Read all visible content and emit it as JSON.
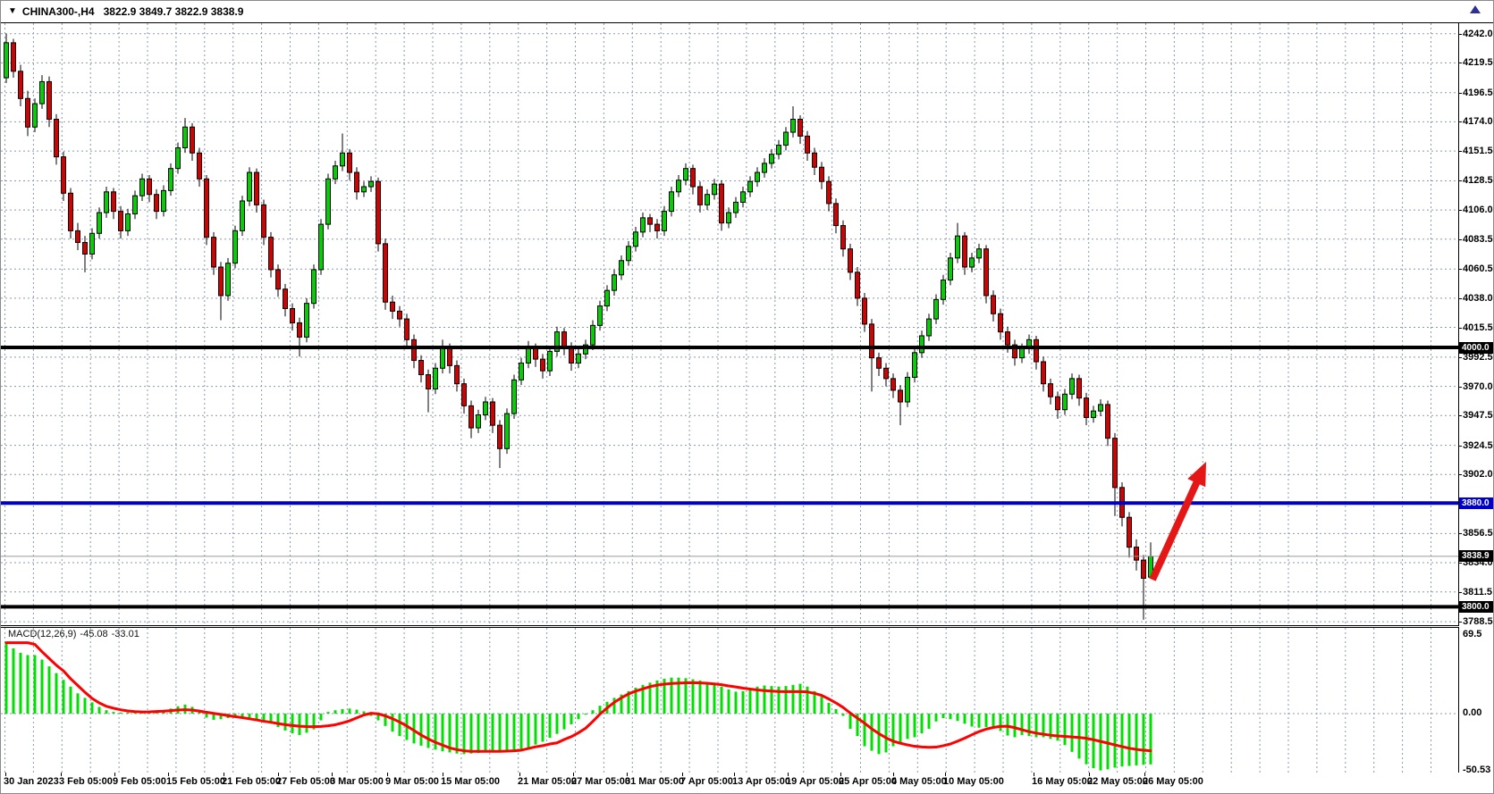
{
  "title_bar": {
    "symbol": "CHINA300-,H4",
    "ohlc": "3822.9 3849.7 3822.9 3838.9"
  },
  "icons": {
    "symbol_dropdown": "▼",
    "chart_shift": "triangle-up"
  },
  "price_axis": {
    "tick_labels": [
      "4242.0",
      "4219.5",
      "4196.5",
      "4174.0",
      "4151.5",
      "4128.5",
      "4106.0",
      "4083.5",
      "4060.5",
      "4038.0",
      "4015.5",
      "3992.5",
      "3970.0",
      "3947.5",
      "3924.5",
      "3902.0",
      "3856.5",
      "3834.0",
      "3811.5",
      "3788.5"
    ],
    "badges": [
      {
        "text": "4000.0",
        "price": 4000.0,
        "bg": "#000000"
      },
      {
        "text": "3880.0",
        "price": 3880.0,
        "bg": "#0000c8"
      },
      {
        "text": "3838.9",
        "price": 3838.9,
        "bg": "#000000"
      },
      {
        "text": "3800.0",
        "price": 3800.0,
        "bg": "#000000"
      }
    ]
  },
  "time_axis": {
    "labels": [
      "30 Jan 2023",
      "3 Feb 05:00",
      "9 Feb 05:00",
      "15 Feb 05:00",
      "21 Feb 05:00",
      "27 Feb 05:00",
      "3 Mar 05:00",
      "9 Mar 05:00",
      "15 Mar 05:00",
      "21 Mar 05:00",
      "27 Mar 05:00",
      "31 Mar 05:00",
      "7 Apr 05:00",
      "13 Apr 05:00",
      "19 Apr 05:00",
      "25 Apr 05:00",
      "4 May 05:00",
      "10 May 05:00",
      "16 May 05:00",
      "22 May 05:00",
      "26 May 05:00"
    ],
    "positions": [
      3,
      65,
      125,
      185,
      247,
      308,
      368,
      430,
      492,
      578,
      638,
      698,
      760,
      818,
      878,
      937,
      996,
      1054,
      1153,
      1215,
      1277
    ]
  },
  "macd": {
    "name": "MACD(12,26,9)",
    "histogram_value": "-45.08",
    "signal_value": "-33.01",
    "axis_labels": [
      "69.5",
      "0.00",
      "-50.53"
    ],
    "axis_values": [
      69.5,
      0,
      -50.53
    ]
  },
  "colors": {
    "bull": "#00d200",
    "bear": "#d60000",
    "outline": "#000000",
    "wick": "#000000",
    "grid": "#8a99ad",
    "histogram": "#00e000",
    "signal_line": "#ff0000",
    "hline_black": "#000000",
    "hline_blue": "#0000c8",
    "arrow_red": "#e41616",
    "current_price_line": "#999999"
  },
  "chart_data": {
    "type": "candlestick",
    "title": "CHINA300-,H4",
    "timeframe": "H4",
    "price_range": [
      3788.5,
      4242.0
    ],
    "macd_range": [
      -50.53,
      69.5
    ],
    "current_price": 3838.9,
    "hlines": [
      {
        "price": 4000.0,
        "color": "#000000",
        "width": 4
      },
      {
        "price": 3880.0,
        "color": "#0000c8",
        "width": 4
      },
      {
        "price": 3800.0,
        "color": "#000000",
        "width": 4
      }
    ],
    "arrow": {
      "tail": [
        1288,
        648
      ],
      "tip": [
        1348,
        516
      ],
      "thickness": 8
    },
    "ohlc": [
      [
        4208,
        4242,
        4204,
        4235
      ],
      [
        4235,
        4238,
        4208,
        4213
      ],
      [
        4213,
        4218,
        4186,
        4192
      ],
      [
        4192,
        4198,
        4163,
        4170
      ],
      [
        4170,
        4192,
        4166,
        4188
      ],
      [
        4188,
        4210,
        4184,
        4205
      ],
      [
        4205,
        4209,
        4170,
        4176
      ],
      [
        4176,
        4180,
        4141,
        4147
      ],
      [
        4147,
        4151,
        4113,
        4119
      ],
      [
        4119,
        4123,
        4084,
        4090
      ],
      [
        4090,
        4096,
        4075,
        4081
      ],
      [
        4081,
        4086,
        4058,
        4072
      ],
      [
        4072,
        4092,
        4068,
        4088
      ],
      [
        4088,
        4108,
        4084,
        4104
      ],
      [
        4104,
        4124,
        4100,
        4120
      ],
      [
        4120,
        4123,
        4099,
        4105
      ],
      [
        4105,
        4109,
        4084,
        4090
      ],
      [
        4090,
        4107,
        4086,
        4103
      ],
      [
        4103,
        4121,
        4099,
        4117
      ],
      [
        4117,
        4134,
        4113,
        4130
      ],
      [
        4130,
        4133,
        4112,
        4118
      ],
      [
        4118,
        4122,
        4099,
        4105
      ],
      [
        4105,
        4125,
        4101,
        4121
      ],
      [
        4121,
        4142,
        4117,
        4138
      ],
      [
        4138,
        4158,
        4134,
        4154
      ],
      [
        4154,
        4177,
        4150,
        4170
      ],
      [
        4170,
        4173,
        4144,
        4150
      ],
      [
        4150,
        4154,
        4124,
        4130
      ],
      [
        4130,
        4133,
        4079,
        4085
      ],
      [
        4085,
        4089,
        4056,
        4062
      ],
      [
        4062,
        4066,
        4021,
        4040
      ],
      [
        4040,
        4069,
        4036,
        4065
      ],
      [
        4065,
        4094,
        4061,
        4090
      ],
      [
        4090,
        4117,
        4086,
        4113
      ],
      [
        4113,
        4139,
        4109,
        4135
      ],
      [
        4135,
        4138,
        4104,
        4110
      ],
      [
        4110,
        4114,
        4079,
        4085
      ],
      [
        4085,
        4089,
        4054,
        4060
      ],
      [
        4060,
        4064,
        4039,
        4045
      ],
      [
        4045,
        4049,
        4024,
        4030
      ],
      [
        4030,
        4034,
        4013,
        4019
      ],
      [
        4019,
        4023,
        3993,
        4008
      ],
      [
        4008,
        4038,
        4004,
        4034
      ],
      [
        4034,
        4064,
        4030,
        4060
      ],
      [
        4060,
        4099,
        4056,
        4095
      ],
      [
        4095,
        4134,
        4091,
        4130
      ],
      [
        4130,
        4144,
        4126,
        4140
      ],
      [
        4140,
        4165,
        4136,
        4150
      ],
      [
        4150,
        4153,
        4129,
        4135
      ],
      [
        4135,
        4139,
        4114,
        4120
      ],
      [
        4120,
        4128,
        4116,
        4124
      ],
      [
        4124,
        4132,
        4120,
        4128
      ],
      [
        4128,
        4131,
        4074,
        4080
      ],
      [
        4080,
        4084,
        4029,
        4035
      ],
      [
        4035,
        4040,
        4022,
        4028
      ],
      [
        4028,
        4032,
        4016,
        4022
      ],
      [
        4022,
        4026,
        4000,
        4006
      ],
      [
        4006,
        4010,
        3984,
        3990
      ],
      [
        3990,
        3994,
        3973,
        3979
      ],
      [
        3979,
        3983,
        3950,
        3968
      ],
      [
        3968,
        3988,
        3964,
        3984
      ],
      [
        3984,
        4006,
        3980,
        4000
      ],
      [
        4000,
        4003,
        3980,
        3986
      ],
      [
        3986,
        3990,
        3966,
        3972
      ],
      [
        3972,
        3976,
        3949,
        3955
      ],
      [
        3955,
        3959,
        3930,
        3938
      ],
      [
        3938,
        3952,
        3934,
        3948
      ],
      [
        3948,
        3962,
        3944,
        3958
      ],
      [
        3958,
        3961,
        3934,
        3940
      ],
      [
        3940,
        3944,
        3907,
        3922
      ],
      [
        3922,
        3953,
        3918,
        3949
      ],
      [
        3949,
        3979,
        3945,
        3975
      ],
      [
        3975,
        3992,
        3971,
        3988
      ],
      [
        3988,
        4005,
        3984,
        4000
      ],
      [
        4000,
        4003,
        3985,
        3991
      ],
      [
        3991,
        3995,
        3976,
        3982
      ],
      [
        3982,
        4001,
        3978,
        3997
      ],
      [
        3997,
        4016,
        3993,
        4012
      ],
      [
        4012,
        4015,
        3994,
        4000
      ],
      [
        4000,
        4004,
        3982,
        3988
      ],
      [
        3988,
        3999,
        3984,
        3995
      ],
      [
        3995,
        4006,
        3991,
        4002
      ],
      [
        4002,
        4021,
        3998,
        4017
      ],
      [
        4017,
        4036,
        4013,
        4032
      ],
      [
        4032,
        4048,
        4028,
        4044
      ],
      [
        4044,
        4060,
        4040,
        4056
      ],
      [
        4056,
        4071,
        4052,
        4067
      ],
      [
        4067,
        4082,
        4063,
        4078
      ],
      [
        4078,
        4093,
        4074,
        4089
      ],
      [
        4089,
        4104,
        4085,
        4100
      ],
      [
        4100,
        4103,
        4089,
        4095
      ],
      [
        4095,
        4099,
        4084,
        4090
      ],
      [
        4090,
        4109,
        4086,
        4105
      ],
      [
        4105,
        4124,
        4101,
        4120
      ],
      [
        4120,
        4133,
        4116,
        4129
      ],
      [
        4129,
        4142,
        4125,
        4138
      ],
      [
        4138,
        4141,
        4118,
        4124
      ],
      [
        4124,
        4128,
        4104,
        4110
      ],
      [
        4110,
        4122,
        4106,
        4118
      ],
      [
        4118,
        4130,
        4114,
        4126
      ],
      [
        4126,
        4129,
        4090,
        4096
      ],
      [
        4096,
        4108,
        4092,
        4104
      ],
      [
        4104,
        4116,
        4100,
        4112
      ],
      [
        4112,
        4124,
        4108,
        4120
      ],
      [
        4120,
        4132,
        4116,
        4128
      ],
      [
        4128,
        4139,
        4124,
        4135
      ],
      [
        4135,
        4146,
        4131,
        4142
      ],
      [
        4142,
        4153,
        4138,
        4149
      ],
      [
        4149,
        4160,
        4145,
        4156
      ],
      [
        4156,
        4170,
        4152,
        4166
      ],
      [
        4166,
        4186,
        4162,
        4176
      ],
      [
        4176,
        4179,
        4157,
        4163
      ],
      [
        4163,
        4167,
        4144,
        4150
      ],
      [
        4150,
        4154,
        4133,
        4139
      ],
      [
        4139,
        4143,
        4122,
        4128
      ],
      [
        4128,
        4132,
        4105,
        4111
      ],
      [
        4111,
        4115,
        4088,
        4094
      ],
      [
        4094,
        4098,
        4070,
        4076
      ],
      [
        4076,
        4080,
        4052,
        4058
      ],
      [
        4058,
        4062,
        4032,
        4038
      ],
      [
        4038,
        4042,
        4012,
        4018
      ],
      [
        4018,
        4022,
        3966,
        3992
      ],
      [
        3992,
        3996,
        3978,
        3984
      ],
      [
        3984,
        3988,
        3970,
        3976
      ],
      [
        3976,
        3980,
        3961,
        3967
      ],
      [
        3967,
        3971,
        3940,
        3958
      ],
      [
        3958,
        3981,
        3954,
        3977
      ],
      [
        3977,
        4000,
        3973,
        3996
      ],
      [
        3996,
        4013,
        3992,
        4009
      ],
      [
        4009,
        4026,
        4005,
        4022
      ],
      [
        4022,
        4041,
        4018,
        4037
      ],
      [
        4037,
        4056,
        4033,
        4052
      ],
      [
        4052,
        4073,
        4048,
        4069
      ],
      [
        4069,
        4096,
        4065,
        4086
      ],
      [
        4086,
        4089,
        4056,
        4062
      ],
      [
        4062,
        4073,
        4058,
        4069
      ],
      [
        4069,
        4080,
        4065,
        4076
      ],
      [
        4076,
        4079,
        4034,
        4040
      ],
      [
        4040,
        4044,
        4020,
        4026
      ],
      [
        4026,
        4030,
        4006,
        4012
      ],
      [
        4012,
        4016,
        3996,
        4002
      ],
      [
        4002,
        4006,
        3986,
        3992
      ],
      [
        3992,
        4003,
        3988,
        3999
      ],
      [
        3999,
        4010,
        3995,
        4006
      ],
      [
        4006,
        4009,
        3983,
        3989
      ],
      [
        3989,
        3993,
        3966,
        3972
      ],
      [
        3972,
        3976,
        3956,
        3962
      ],
      [
        3962,
        3966,
        3945,
        3952
      ],
      [
        3952,
        3968,
        3948,
        3964
      ],
      [
        3964,
        3980,
        3960,
        3976
      ],
      [
        3976,
        3979,
        3955,
        3961
      ],
      [
        3961,
        3965,
        3940,
        3946
      ],
      [
        3946,
        3955,
        3942,
        3951
      ],
      [
        3951,
        3960,
        3947,
        3956
      ],
      [
        3956,
        3959,
        3924,
        3930
      ],
      [
        3930,
        3934,
        3870,
        3892
      ],
      [
        3892,
        3896,
        3862,
        3869
      ],
      [
        3869,
        3873,
        3838,
        3846
      ],
      [
        3846,
        3852,
        3828,
        3836
      ],
      [
        3836,
        3840,
        3790,
        3822
      ],
      [
        3822.9,
        3849.7,
        3822.9,
        3838.9
      ]
    ],
    "macd_histogram": [
      64,
      58,
      54,
      52,
      52,
      48,
      42,
      36,
      30,
      24,
      18,
      14,
      10,
      6,
      3,
      1.5,
      1,
      1,
      1,
      1.5,
      2,
      2.5,
      3,
      4.5,
      6.5,
      8,
      6,
      2,
      -3.5,
      -5.5,
      -5,
      -4,
      -3.5,
      -4,
      -4.5,
      -5,
      -6.5,
      -9,
      -12,
      -15,
      -17.5,
      -19,
      -17,
      -14,
      -6,
      1.5,
      3,
      4,
      4.5,
      3.5,
      2,
      -2,
      -6,
      -11,
      -16,
      -20,
      -23.5,
      -26.5,
      -28.5,
      -30.5,
      -32,
      -33.5,
      -34.5,
      -35.5,
      -36,
      -35.5,
      -35,
      -34.5,
      -34,
      -34.5,
      -34,
      -33,
      -31.5,
      -30,
      -27.5,
      -25,
      -21.5,
      -18,
      -14,
      -9.5,
      -5,
      -1,
      3,
      7,
      10.5,
      14,
      17,
      20,
      23,
      25.5,
      27.5,
      29.5,
      31,
      32,
      32,
      31.5,
      30.5,
      29.5,
      28,
      26,
      24,
      21.5,
      19.5,
      20,
      22,
      24,
      25,
      24.5,
      24,
      24.5,
      25.5,
      26.5,
      24,
      20,
      15,
      9.5,
      4,
      -2,
      -13.5,
      -20,
      -29,
      -33,
      -36,
      -34.5,
      -29,
      -26.5,
      -22.5,
      -21,
      -17.5,
      -13.5,
      -7,
      -4,
      -5,
      -6.5,
      -9,
      -11.5,
      -12.5,
      -12,
      -13,
      -15.5,
      -19.5,
      -21,
      -19,
      -20,
      -21,
      -21,
      -22.5,
      -24,
      -28,
      -34,
      -40,
      -45,
      -48.5,
      -50.5,
      -49.5,
      -48,
      -47,
      -46.5,
      -46,
      -45.5,
      -45.08
    ],
    "macd_signal": [
      63,
      63,
      63,
      63,
      61.5,
      55,
      49,
      43,
      38,
      31,
      25,
      19,
      13.5,
      9.5,
      6.5,
      4.8,
      3.4,
      2.4,
      1.8,
      1.5,
      1.6,
      1.9,
      2.2,
      2.7,
      3.2,
      3.5,
      3.2,
      2.3,
      1.2,
      0.2,
      -0.7,
      -1.8,
      -2.7,
      -3.6,
      -4.6,
      -5.6,
      -6.8,
      -7.7,
      -8.8,
      -9.8,
      -10.5,
      -11.2,
      -11.5,
      -11.6,
      -11.4,
      -10.8,
      -9.9,
      -8.3,
      -6.4,
      -3.8,
      -1.2,
      0.3,
      -0.2,
      -2,
      -4.5,
      -7.5,
      -11,
      -15,
      -19,
      -22.5,
      -25.5,
      -28,
      -30.5,
      -32,
      -33,
      -33.5,
      -33.5,
      -33.5,
      -33.5,
      -33.5,
      -33.3,
      -33,
      -32.5,
      -31,
      -29.5,
      -28.5,
      -27,
      -26,
      -23,
      -20.5,
      -17,
      -13,
      -7,
      -0.5,
      5,
      10,
      14,
      17.5,
      20,
      22,
      24,
      25.3,
      26.2,
      26.8,
      27.1,
      27.4,
      27.5,
      27.3,
      27,
      26.4,
      25.7,
      24.6,
      23.7,
      22.6,
      21.8,
      21,
      20.4,
      20,
      19.6,
      19.5,
      19.5,
      19.5,
      19.3,
      18,
      16.2,
      13,
      9.5,
      5.5,
      0.5,
      -4,
      -8.5,
      -13.5,
      -17.8,
      -21.5,
      -24.5,
      -26.3,
      -27.8,
      -29,
      -29.7,
      -30,
      -29.8,
      -28.5,
      -27,
      -24.5,
      -21.8,
      -18.8,
      -16,
      -13.8,
      -12.3,
      -11.3,
      -11.2,
      -12.5,
      -14.3,
      -16,
      -17.3,
      -18.3,
      -19.2,
      -19.8,
      -20.2,
      -20.7,
      -21.2,
      -21.9,
      -23.2,
      -24.7,
      -26.2,
      -27.8,
      -29.3,
      -30.8,
      -31.8,
      -32.5,
      -33.01
    ]
  }
}
